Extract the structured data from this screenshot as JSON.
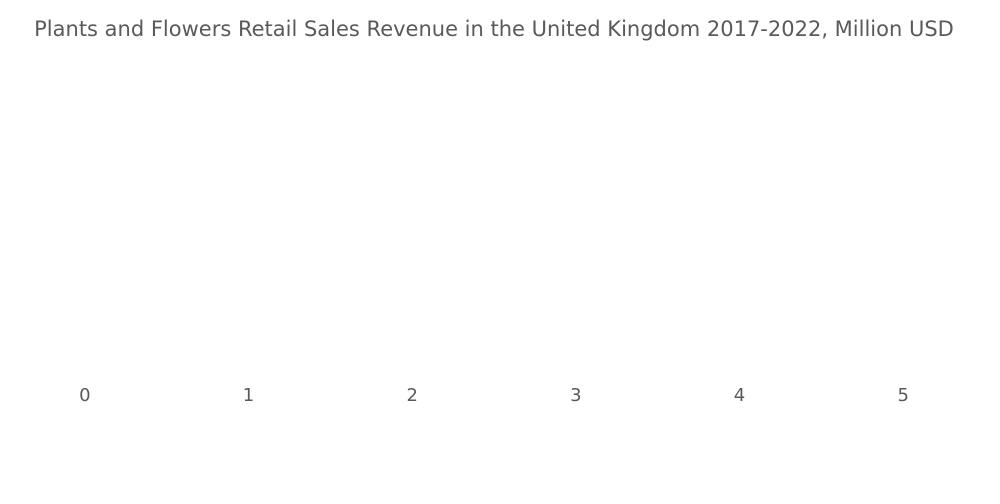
{
  "chart_data": {
    "type": "bar",
    "title": "Plants and Flowers Retail Sales Revenue in the United Kingdom 2017-2022, Million USD",
    "xlim": [
      -0.5,
      5.5
    ],
    "xticks": [
      0,
      1,
      2,
      3,
      4,
      5
    ],
    "grid": false
  }
}
